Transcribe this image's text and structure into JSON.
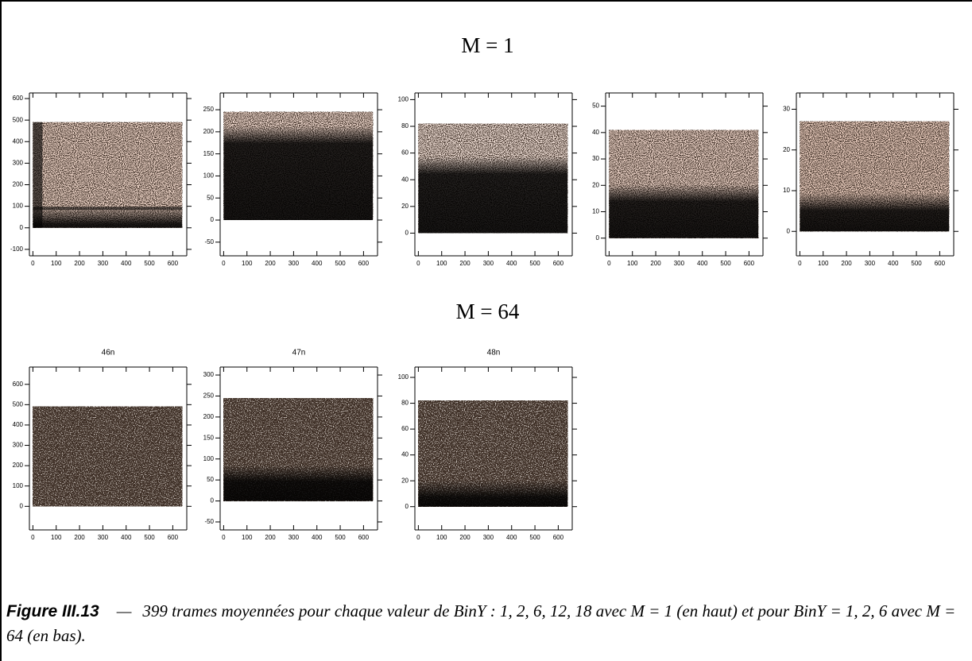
{
  "sections": [
    {
      "title": "M = 1",
      "panels": [
        {
          "xlim": [
            -15,
            660
          ],
          "ylim": [
            -130,
            626
          ],
          "xticks": [
            0,
            100,
            200,
            300,
            400,
            500,
            600
          ],
          "yticks": [
            -100,
            0,
            100,
            200,
            300,
            400,
            500,
            600
          ],
          "image_x": [
            0,
            640
          ],
          "image_y": [
            0,
            490
          ]
        },
        {
          "xlim": [
            -15,
            660
          ],
          "ylim": [
            -81,
            288
          ],
          "xticks": [
            0,
            100,
            200,
            300,
            400,
            500,
            600
          ],
          "yticks": [
            -50,
            0,
            50,
            100,
            150,
            200,
            250
          ],
          "image_x": [
            0,
            640
          ],
          "image_y": [
            0,
            245
          ]
        },
        {
          "xlim": [
            -15,
            660
          ],
          "ylim": [
            -17,
            105
          ],
          "xticks": [
            0,
            100,
            200,
            300,
            400,
            500,
            600
          ],
          "yticks": [
            0,
            20,
            40,
            60,
            80,
            100
          ],
          "image_x": [
            0,
            640
          ],
          "image_y": [
            0,
            82
          ]
        },
        {
          "xlim": [
            -15,
            660
          ],
          "ylim": [
            -6.7,
            55
          ],
          "xticks": [
            0,
            100,
            200,
            300,
            400,
            500,
            600
          ],
          "yticks": [
            0,
            10,
            20,
            30,
            40,
            50
          ],
          "image_x": [
            0,
            640
          ],
          "image_y": [
            0,
            41
          ]
        },
        {
          "xlim": [
            -15,
            660
          ],
          "ylim": [
            -6,
            34
          ],
          "xticks": [
            0,
            100,
            200,
            300,
            400,
            500,
            600
          ],
          "yticks": [
            0,
            10,
            20,
            30
          ],
          "image_x": [
            0,
            640
          ],
          "image_y": [
            0,
            27
          ]
        }
      ]
    },
    {
      "title": "M = 64",
      "panels": [
        {
          "title": "46n",
          "xlim": [
            -15,
            660
          ],
          "ylim": [
            -116,
            685
          ],
          "xticks": [
            0,
            100,
            200,
            300,
            400,
            500,
            600
          ],
          "yticks": [
            0,
            100,
            200,
            300,
            400,
            500,
            600
          ],
          "image_x": [
            0,
            640
          ],
          "image_y": [
            0,
            490
          ]
        },
        {
          "title": "47n",
          "xlim": [
            -15,
            660
          ],
          "ylim": [
            -69,
            319
          ],
          "xticks": [
            0,
            100,
            200,
            300,
            400,
            500,
            600
          ],
          "yticks": [
            -50,
            0,
            50,
            100,
            150,
            200,
            250,
            300
          ],
          "image_x": [
            0,
            640
          ],
          "image_y": [
            0,
            245
          ]
        },
        {
          "title": "48n",
          "xlim": [
            -15,
            660
          ],
          "ylim": [
            -18,
            108
          ],
          "xticks": [
            0,
            100,
            200,
            300,
            400,
            500,
            600
          ],
          "yticks": [
            0,
            20,
            40,
            60,
            80,
            100
          ],
          "image_x": [
            0,
            640
          ],
          "image_y": [
            0,
            82
          ]
        }
      ]
    }
  ],
  "caption": {
    "label": "Figure III.13",
    "separator": "—",
    "text": "399 trames moyennées pour chaque valeur de BinY : 1, 2, 6, 12, 18 avec M = 1 (en haut) et pour BinY = 1, 2, 6 avec M = 64 (en bas)."
  }
}
